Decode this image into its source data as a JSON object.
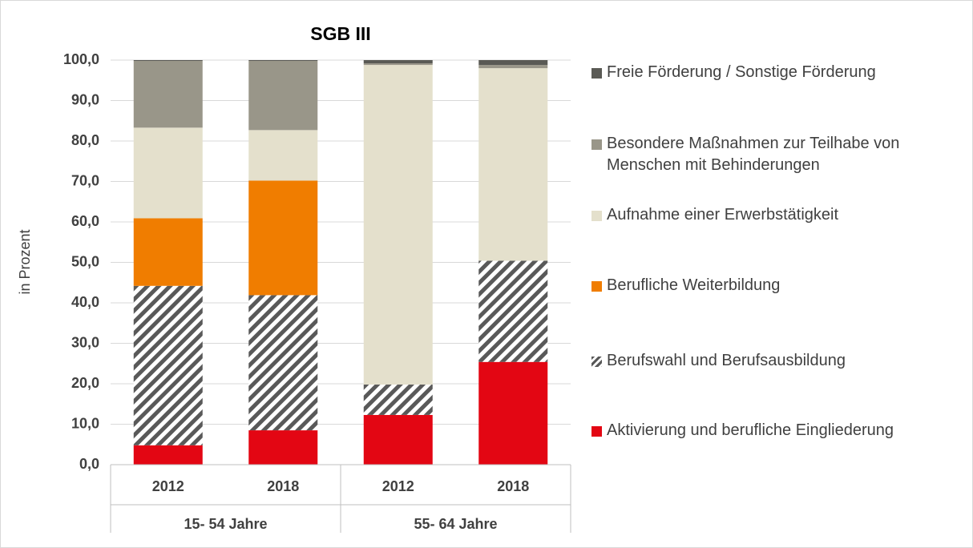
{
  "chart_data": {
    "type": "stacked_bar",
    "title": "SGB III",
    "y_label": "in Prozent",
    "categories": [
      "2012",
      "2018",
      "2012",
      "2018"
    ],
    "groups": [
      "15- 54 Jahre",
      "55- 64 Jahre"
    ],
    "series": [
      {
        "name": "Aktivierung und berufliche Eingliederung",
        "color": "#e30613",
        "values": [
          4.8,
          8.5,
          12.3,
          25.4
        ]
      },
      {
        "name": "Berufswahl und Berufsausbildung",
        "color": "#595959",
        "pattern": "hatch",
        "values": [
          39.4,
          33.4,
          7.5,
          25.0
        ]
      },
      {
        "name": "Berufliche Weiterbildung",
        "color": "#f07d00",
        "values": [
          16.7,
          28.3,
          0,
          0
        ]
      },
      {
        "name": "Aufnahme einer Erwerbstätigkeit",
        "color": "#e4e0cc",
        "values": [
          22.4,
          12.5,
          79.0,
          47.6
        ]
      },
      {
        "name": "Besondere Maßnahmen zur Teilhabe von Menschen mit Behinderungen",
        "color": "#999689",
        "values": [
          16.5,
          17.1,
          0.4,
          0.8
        ]
      },
      {
        "name": "Freie Förderung / Sonstige Förderung",
        "color": "#5a5a55",
        "values": [
          0.2,
          0.2,
          0.8,
          1.2
        ]
      }
    ],
    "ylim": [
      0,
      100
    ],
    "yticks": [
      {
        "value": 0,
        "label": "0,0"
      },
      {
        "value": 10,
        "label": "10,0"
      },
      {
        "value": 20,
        "label": "20,0"
      },
      {
        "value": 30,
        "label": "30,0"
      },
      {
        "value": 40,
        "label": "40,0"
      },
      {
        "value": 50,
        "label": "50,0"
      },
      {
        "value": 60,
        "label": "60,0"
      },
      {
        "value": 70,
        "label": "70,0"
      },
      {
        "value": 80,
        "label": "80,0"
      },
      {
        "value": 90,
        "label": "90,0"
      },
      {
        "value": 100,
        "label": "100,0"
      }
    ],
    "grid": true,
    "legend": "right"
  }
}
